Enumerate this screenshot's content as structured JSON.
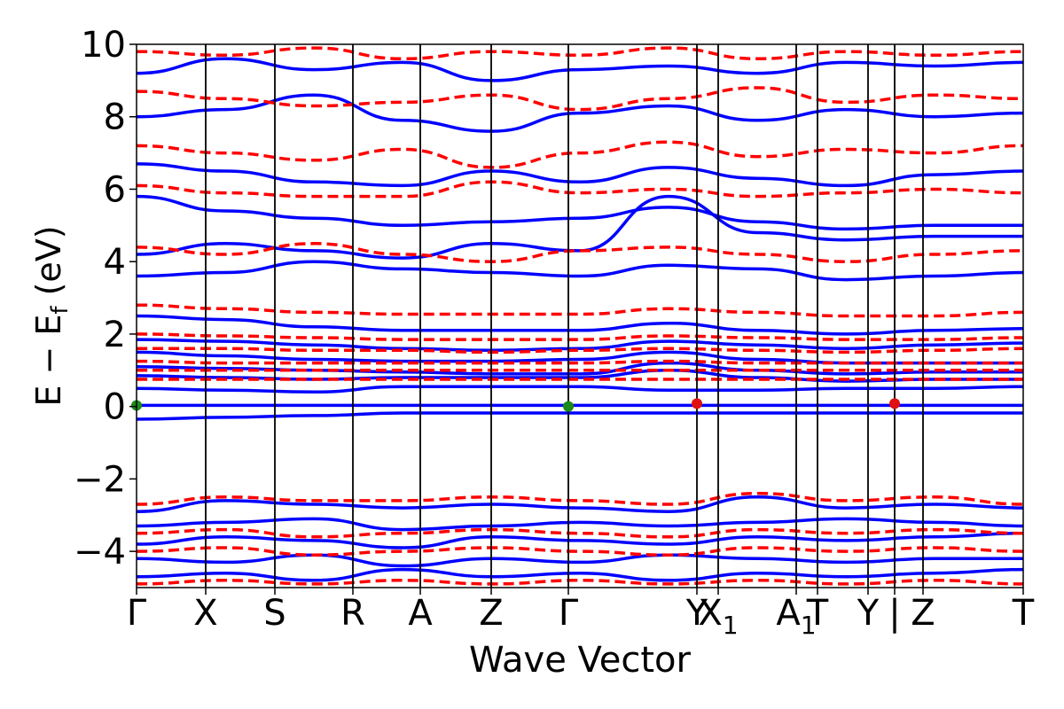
{
  "chart_data": {
    "type": "line",
    "title": "",
    "xlabel": "Wave Vector",
    "ylabel_parts": {
      "main": "E − E",
      "sub": "f",
      "unit": " (eV)"
    },
    "ylim": [
      -5,
      10
    ],
    "yticks": [
      {
        "value": -4,
        "label": "−4"
      },
      {
        "value": -2,
        "label": "−2"
      },
      {
        "value": 0,
        "label": "0"
      },
      {
        "value": 2,
        "label": "2"
      },
      {
        "value": 4,
        "label": "4"
      },
      {
        "value": 6,
        "label": "6"
      },
      {
        "value": 8,
        "label": "8"
      },
      {
        "value": 10,
        "label": "10"
      }
    ],
    "xlim": [
      0,
      1
    ],
    "kpoints": [
      {
        "pos": 0.0,
        "label": "Γ"
      },
      {
        "pos": 0.078,
        "label": "X"
      },
      {
        "pos": 0.156,
        "label": "S"
      },
      {
        "pos": 0.244,
        "label": "R"
      },
      {
        "pos": 0.32,
        "label": "A"
      },
      {
        "pos": 0.4,
        "label": "Z"
      },
      {
        "pos": 0.487,
        "label": "Γ"
      },
      {
        "pos": 0.632,
        "label": "Y"
      },
      {
        "pos": 0.656,
        "label": "X",
        "sub": "1"
      },
      {
        "pos": 0.744,
        "label": "A",
        "sub": "1"
      },
      {
        "pos": 0.768,
        "label": "T"
      },
      {
        "pos": 0.825,
        "label": "Y"
      },
      {
        "pos": 0.855,
        "label": "|"
      },
      {
        "pos": 0.887,
        "label": "Z"
      },
      {
        "pos": 1.0,
        "label": "T"
      }
    ],
    "grid": false,
    "colors": {
      "blue_bands": "#0000ff",
      "red_bands": "#ff0000",
      "green_marker": "#1a8a1a",
      "red_marker": "#e01010"
    },
    "blue_flat_bands": [
      [
        0.03,
        0.03,
        0.03,
        0.03,
        0.03,
        0.03,
        0.03,
        0.03,
        0.03,
        0.03,
        0.03
      ],
      [
        -0.35,
        -0.3,
        -0.25,
        -0.18,
        -0.18,
        -0.18,
        -0.18,
        -0.18,
        -0.18,
        -0.18,
        -0.18
      ],
      [
        0.5,
        0.45,
        0.4,
        0.55,
        0.55,
        0.55,
        0.45,
        0.45,
        0.5,
        0.5,
        0.55
      ],
      [
        0.85,
        0.8,
        0.75,
        0.8,
        0.8,
        0.8,
        1.0,
        0.8,
        0.7,
        0.75,
        0.75
      ],
      [
        1.1,
        1.05,
        1.0,
        0.95,
        0.9,
        0.9,
        1.2,
        1.0,
        0.9,
        0.95,
        0.95
      ],
      [
        1.5,
        1.4,
        1.3,
        1.25,
        1.25,
        1.3,
        1.5,
        1.3,
        1.2,
        1.2,
        1.2
      ],
      [
        1.85,
        1.8,
        1.7,
        1.6,
        1.55,
        1.6,
        1.8,
        1.7,
        1.6,
        1.7,
        1.75
      ],
      [
        2.5,
        2.4,
        2.2,
        2.1,
        2.1,
        2.1,
        2.3,
        2.1,
        2.0,
        2.1,
        2.15
      ],
      [
        3.6,
        3.7,
        4.0,
        3.8,
        3.7,
        3.6,
        3.9,
        3.8,
        3.5,
        3.6,
        3.7
      ],
      [
        4.2,
        4.5,
        4.3,
        4.1,
        4.5,
        4.3,
        5.8,
        4.8,
        4.6,
        4.7,
        4.7
      ],
      [
        5.8,
        5.4,
        5.2,
        5.0,
        5.1,
        5.2,
        5.5,
        5.1,
        4.9,
        5.0,
        5.0
      ],
      [
        6.7,
        6.5,
        6.2,
        6.1,
        6.5,
        6.2,
        6.6,
        6.3,
        6.1,
        6.4,
        6.5
      ],
      [
        8.0,
        8.2,
        8.6,
        7.9,
        7.6,
        8.1,
        8.3,
        7.9,
        8.2,
        8.0,
        8.1
      ],
      [
        9.2,
        9.6,
        9.3,
        9.5,
        9.0,
        9.3,
        9.4,
        9.2,
        9.5,
        9.4,
        9.5
      ],
      [
        -2.9,
        -2.6,
        -2.7,
        -2.8,
        -2.7,
        -2.8,
        -2.9,
        -2.5,
        -2.8,
        -2.7,
        -2.8
      ],
      [
        -3.3,
        -3.2,
        -3.1,
        -3.4,
        -3.3,
        -3.2,
        -3.3,
        -3.2,
        -3.1,
        -3.2,
        -3.3
      ],
      [
        -3.8,
        -3.6,
        -3.7,
        -3.9,
        -3.6,
        -3.7,
        -3.8,
        -3.6,
        -3.7,
        -3.6,
        -3.5
      ],
      [
        -4.2,
        -4.3,
        -4.1,
        -4.4,
        -4.2,
        -4.3,
        -4.1,
        -4.2,
        -4.3,
        -4.2,
        -4.2
      ],
      [
        -4.7,
        -4.6,
        -4.8,
        -4.5,
        -4.7,
        -4.6,
        -4.8,
        -4.6,
        -4.7,
        -4.6,
        -4.5
      ]
    ],
    "red_dashed_bands": [
      [
        0.75,
        0.75,
        0.75,
        0.75,
        0.75,
        0.75,
        0.75,
        0.75,
        0.75,
        0.75,
        0.75
      ],
      [
        1.0,
        1.0,
        1.0,
        1.0,
        1.0,
        1.0,
        1.0,
        1.0,
        1.0,
        1.0,
        1.0
      ],
      [
        1.25,
        1.2,
        1.2,
        1.2,
        1.2,
        1.2,
        1.25,
        1.2,
        1.2,
        1.2,
        1.2
      ],
      [
        1.6,
        1.6,
        1.55,
        1.55,
        1.5,
        1.55,
        1.6,
        1.55,
        1.5,
        1.55,
        1.6
      ],
      [
        2.0,
        1.95,
        1.9,
        1.85,
        1.85,
        1.85,
        1.95,
        1.9,
        1.85,
        1.85,
        1.9
      ],
      [
        2.8,
        2.7,
        2.6,
        2.55,
        2.55,
        2.55,
        2.7,
        2.6,
        2.5,
        2.5,
        2.6
      ],
      [
        4.4,
        4.2,
        4.5,
        4.2,
        4.0,
        4.3,
        4.4,
        4.2,
        4.0,
        4.2,
        4.3
      ],
      [
        6.1,
        5.9,
        5.8,
        5.8,
        6.2,
        5.9,
        6.0,
        5.8,
        5.9,
        6.0,
        5.9
      ],
      [
        7.2,
        7.0,
        6.8,
        7.1,
        6.6,
        7.0,
        7.3,
        6.9,
        7.1,
        7.0,
        7.2
      ],
      [
        8.7,
        8.5,
        8.3,
        8.4,
        8.6,
        8.2,
        8.5,
        8.8,
        8.4,
        8.6,
        8.5
      ],
      [
        9.8,
        9.7,
        9.9,
        9.6,
        9.8,
        9.7,
        9.9,
        9.6,
        9.8,
        9.7,
        9.8
      ],
      [
        -2.7,
        -2.5,
        -2.6,
        -2.6,
        -2.5,
        -2.6,
        -2.7,
        -2.4,
        -2.6,
        -2.5,
        -2.7
      ],
      [
        -3.5,
        -3.4,
        -3.6,
        -3.5,
        -3.4,
        -3.5,
        -3.6,
        -3.4,
        -3.5,
        -3.4,
        -3.5
      ],
      [
        -4.0,
        -3.9,
        -4.1,
        -4.0,
        -3.9,
        -4.0,
        -4.1,
        -3.9,
        -4.0,
        -3.9,
        -4.0
      ],
      [
        -4.9,
        -4.8,
        -4.9,
        -4.8,
        -4.9,
        -4.8,
        -4.9,
        -4.8,
        -4.9,
        -4.8,
        -4.9
      ]
    ],
    "markers": [
      {
        "pos": 0.0,
        "y": 0.03,
        "color": "green"
      },
      {
        "pos": 0.487,
        "y": 0.0,
        "color": "green"
      },
      {
        "pos": 0.632,
        "y": 0.08,
        "color": "red"
      },
      {
        "pos": 0.855,
        "y": 0.08,
        "color": "red"
      }
    ]
  }
}
